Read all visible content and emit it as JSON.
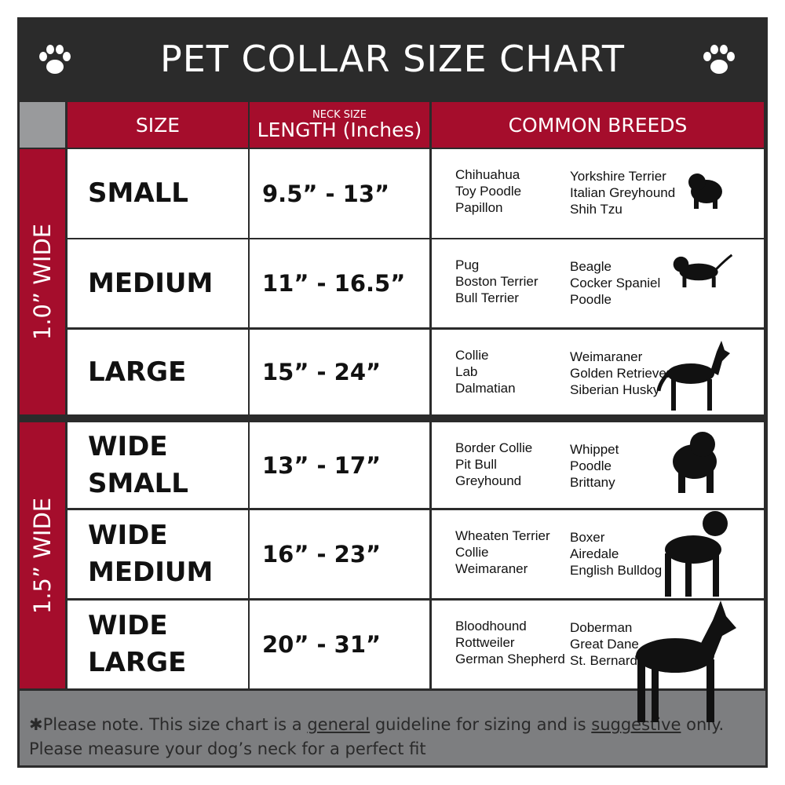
{
  "title": "PET COLLAR SIZE CHART",
  "icons": {
    "left": "paw-print-icon",
    "right": "paw-print-icon"
  },
  "colors": {
    "header_red": "#a50d2c",
    "frame": "#2b2b2b",
    "footer_gray": "#7d7e80"
  },
  "headers": {
    "size": "SIZE",
    "length_small": "NECK SIZE",
    "length": "LENGTH (Inches)",
    "breeds": "COMMON BREEDS"
  },
  "groups": [
    {
      "label": "1.0” WIDE"
    },
    {
      "label": "1.5” WIDE"
    }
  ],
  "rows": [
    {
      "size": [
        "SMALL"
      ],
      "length": "9.5” - 13”",
      "breeds_a": [
        "Chihuahua",
        "Toy Poodle",
        "Papillon"
      ],
      "breeds_b": [
        "Yorkshire Terrier",
        "Italian Greyhound",
        "Shih Tzu"
      ],
      "icon": "small-dog-icon"
    },
    {
      "size": [
        "MEDIUM"
      ],
      "length": "11” - 16.5”",
      "breeds_a": [
        "Pug",
        "Boston Terrier",
        "Bull Terrier"
      ],
      "breeds_b": [
        "Beagle",
        "Cocker Spaniel",
        "Poodle"
      ],
      "icon": "medium-dog-icon"
    },
    {
      "size": [
        "LARGE"
      ],
      "length": "15” - 24”",
      "breeds_a": [
        "Collie",
        "Lab",
        "Dalmatian"
      ],
      "breeds_b": [
        "Weimaraner",
        "Golden Retriever",
        "Siberian Husky"
      ],
      "icon": "large-dog-icon"
    },
    {
      "size": [
        "WIDE",
        "SMALL"
      ],
      "length": "13” - 17”",
      "breeds_a": [
        "Border Collie",
        "Pit Bull",
        "Greyhound"
      ],
      "breeds_b": [
        "Whippet",
        "Poodle",
        "Brittany"
      ],
      "icon": "bulldog-icon"
    },
    {
      "size": [
        "WIDE",
        "MEDIUM"
      ],
      "length": "16” - 23”",
      "breeds_a": [
        "Wheaten Terrier",
        "Collie",
        "Weimaraner"
      ],
      "breeds_b": [
        "Boxer",
        "Airedale",
        "English Bulldog"
      ],
      "icon": "pitbull-icon"
    },
    {
      "size": [
        "WIDE",
        "LARGE"
      ],
      "length": "20” - 31”",
      "breeds_a": [
        "Bloodhound",
        "Rottweiler",
        "German Shepherd"
      ],
      "breeds_b": [
        "Doberman",
        "Great Dane",
        "St. Bernard"
      ],
      "icon": "doberman-icon"
    }
  ],
  "footer": {
    "p1": "✱Please note. This size chart is a ",
    "u1": "general",
    "p2": " guideline for sizing and is ",
    "u2": "suggestive",
    "p3": " only.",
    "line2": "Please measure your dog’s neck for a perfect fit"
  }
}
